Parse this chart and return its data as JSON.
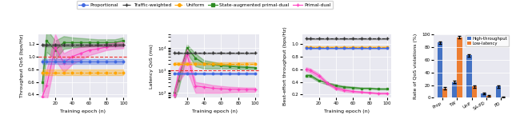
{
  "epochs": [
    5,
    10,
    20,
    30,
    40,
    50,
    60,
    70,
    80,
    90,
    100
  ],
  "prop_color": "#4169E1",
  "tw_color": "#333333",
  "uni_color": "#FFA500",
  "sapd_color": "#2E8B22",
  "pd_color": "#FF40C0",
  "bg_color": "#E8E8F0",
  "plot1_ylabel": "Throughput QoS (bps/Hz)",
  "plot1_xlabel": "Training epoch (n)",
  "plot1_ylim": [
    0.35,
    1.35
  ],
  "plot1_yticks": [
    0.4,
    0.6,
    0.8,
    1.0,
    1.2
  ],
  "plot1_hline": 1.0,
  "plot1_hline_color": "#EE3333",
  "prop_mean": [
    0.92,
    0.92,
    0.92,
    0.92,
    0.92,
    0.92,
    0.92,
    0.92,
    0.92,
    0.92,
    0.92
  ],
  "prop_std": [
    0.04,
    0.04,
    0.04,
    0.04,
    0.04,
    0.04,
    0.04,
    0.04,
    0.04,
    0.04,
    0.04
  ],
  "tw_mean": [
    1.18,
    1.18,
    1.18,
    1.18,
    1.18,
    1.18,
    1.18,
    1.18,
    1.18,
    1.18,
    1.18
  ],
  "tw_std": [
    0.02,
    0.02,
    0.02,
    0.02,
    0.02,
    0.02,
    0.02,
    0.02,
    0.02,
    0.02,
    0.02
  ],
  "uni_mean": [
    0.75,
    0.75,
    0.75,
    0.75,
    0.75,
    0.75,
    0.75,
    0.75,
    0.75,
    0.75,
    0.75
  ],
  "uni_std": [
    0.04,
    0.04,
    0.04,
    0.04,
    0.04,
    0.04,
    0.04,
    0.04,
    0.04,
    0.04,
    0.04
  ],
  "sapd_mean1": [
    0.6,
    1.25,
    1.1,
    1.22,
    1.22,
    1.22,
    1.22,
    1.22,
    1.22,
    1.22,
    1.25
  ],
  "sapd_std1": [
    0.15,
    0.18,
    0.15,
    0.1,
    0.08,
    0.07,
    0.06,
    0.05,
    0.05,
    0.05,
    0.05
  ],
  "pd_mean1": [
    0.37,
    0.55,
    1.15,
    0.9,
    1.0,
    1.05,
    1.1,
    1.12,
    1.15,
    1.17,
    1.18
  ],
  "pd_std1": [
    0.05,
    0.25,
    0.2,
    0.15,
    0.12,
    0.1,
    0.08,
    0.06,
    0.05,
    0.05,
    0.05
  ],
  "plot2_ylabel": "Latency QoS (ms)",
  "plot2_xlabel": "Training epoch (n)",
  "lat_prop_mean": [
    700,
    700,
    700,
    700,
    700,
    700,
    700,
    700,
    700,
    700,
    700
  ],
  "lat_prop_std": [
    60,
    60,
    60,
    60,
    60,
    60,
    60,
    60,
    60,
    60,
    60
  ],
  "lat_tw_mean": [
    6000,
    6000,
    6000,
    6000,
    6000,
    6000,
    6000,
    6000,
    6000,
    6000,
    6000
  ],
  "lat_tw_std": [
    300,
    300,
    300,
    300,
    300,
    300,
    300,
    300,
    300,
    300,
    300
  ],
  "lat_uni_mean": [
    2000,
    2000,
    2000,
    2000,
    2000,
    2000,
    2000,
    2000,
    2000,
    2000,
    2000
  ],
  "lat_uni_std": [
    200,
    200,
    200,
    200,
    200,
    200,
    200,
    200,
    200,
    200,
    200
  ],
  "lat_sapd_mean": [
    100,
    350,
    10000,
    3500,
    2000,
    1800,
    1600,
    1500,
    1400,
    1350,
    1300
  ],
  "lat_sapd_std": [
    50,
    200,
    4000,
    2000,
    800,
    600,
    400,
    300,
    250,
    200,
    150
  ],
  "lat_pd_mean": [
    80,
    700,
    5000,
    200,
    180,
    160,
    150,
    145,
    142,
    140,
    140
  ],
  "lat_pd_std": [
    40,
    400,
    4000,
    100,
    80,
    60,
    50,
    40,
    35,
    30,
    30
  ],
  "plot3_ylabel": "Best-effort throughput (bps/Hz)",
  "plot3_xlabel": "Training epoch (n)",
  "plot3_ylim": [
    0.15,
    1.15
  ],
  "plot3_yticks": [
    0.2,
    0.4,
    0.6,
    0.8,
    1.0
  ],
  "bis_prop_mean": [
    0.93,
    0.93,
    0.93,
    0.93,
    0.93,
    0.93,
    0.93,
    0.93,
    0.93,
    0.93,
    0.93
  ],
  "bis_prop_std": [
    0.01,
    0.01,
    0.01,
    0.01,
    0.01,
    0.01,
    0.01,
    0.01,
    0.01,
    0.01,
    0.01
  ],
  "bis_tw_mean": [
    1.08,
    1.08,
    1.08,
    1.08,
    1.08,
    1.08,
    1.08,
    1.08,
    1.08,
    1.08,
    1.08
  ],
  "bis_tw_std": [
    0.005,
    0.005,
    0.005,
    0.005,
    0.005,
    0.005,
    0.005,
    0.005,
    0.005,
    0.005,
    0.005
  ],
  "bis_uni_mean": [
    0.95,
    0.95,
    0.95,
    0.95,
    0.95,
    0.95,
    0.95,
    0.95,
    0.95,
    0.95,
    0.95
  ],
  "bis_uni_std": [
    0.01,
    0.01,
    0.01,
    0.01,
    0.01,
    0.01,
    0.01,
    0.01,
    0.01,
    0.01,
    0.01
  ],
  "bis_sapd_mean": [
    0.5,
    0.5,
    0.42,
    0.38,
    0.34,
    0.32,
    0.31,
    0.3,
    0.3,
    0.29,
    0.29
  ],
  "bis_sapd_std": [
    0.02,
    0.02,
    0.02,
    0.02,
    0.02,
    0.015,
    0.015,
    0.01,
    0.01,
    0.01,
    0.01
  ],
  "bis_pd_mean": [
    0.6,
    0.58,
    0.5,
    0.38,
    0.3,
    0.27,
    0.25,
    0.24,
    0.23,
    0.22,
    0.22
  ],
  "bis_pd_std": [
    0.03,
    0.03,
    0.03,
    0.02,
    0.02,
    0.02,
    0.015,
    0.01,
    0.01,
    0.01,
    0.01
  ],
  "bar_categories": [
    "Prop",
    "TW",
    "Unif",
    "SA-PD",
    "PD"
  ],
  "bar_ht_means": [
    87,
    25,
    67,
    7,
    18
  ],
  "bar_ht_stds": [
    2,
    2,
    2,
    1,
    2
  ],
  "bar_ll_means": [
    15,
    95,
    18,
    3,
    1
  ],
  "bar_ll_stds": [
    2,
    2,
    2,
    1,
    0.5
  ],
  "bar_color_ht": "#4472C4",
  "bar_color_ll": "#ED7D31",
  "bar4_ylabel": "Rate of QoS violations (%)",
  "bar4_ylim": [
    0,
    100
  ],
  "bar4_yticks": [
    0,
    20,
    40,
    60,
    80,
    100
  ]
}
